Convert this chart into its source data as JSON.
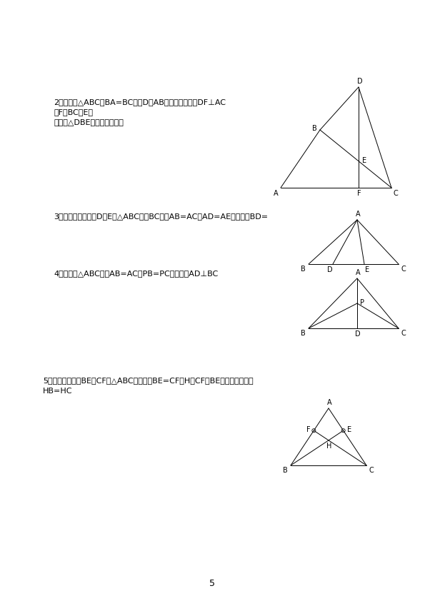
{
  "page_number": "5",
  "background_color": "#ffffff",
  "line2": [
    "2．如图，△ABC中BA=BC，点D是AB延长线上一点，DF⊥AC",
    "于F交BC于E，",
    "求证：△DBE是等腰三角形．"
  ],
  "line3": "3．如图，已知：点D，E在△ABC的边BC上，AB=AC，AD=AE．求证：BD=",
  "line4": "4．如图：△ABC中，AB=AC，PB=PC．求证：AD⊥BC",
  "line5a": "5．已知：如图，BE和CF是△ABC的高线，BE=CF，H是CF、BE的交点．求证：",
  "line5b": "HB=HC"
}
